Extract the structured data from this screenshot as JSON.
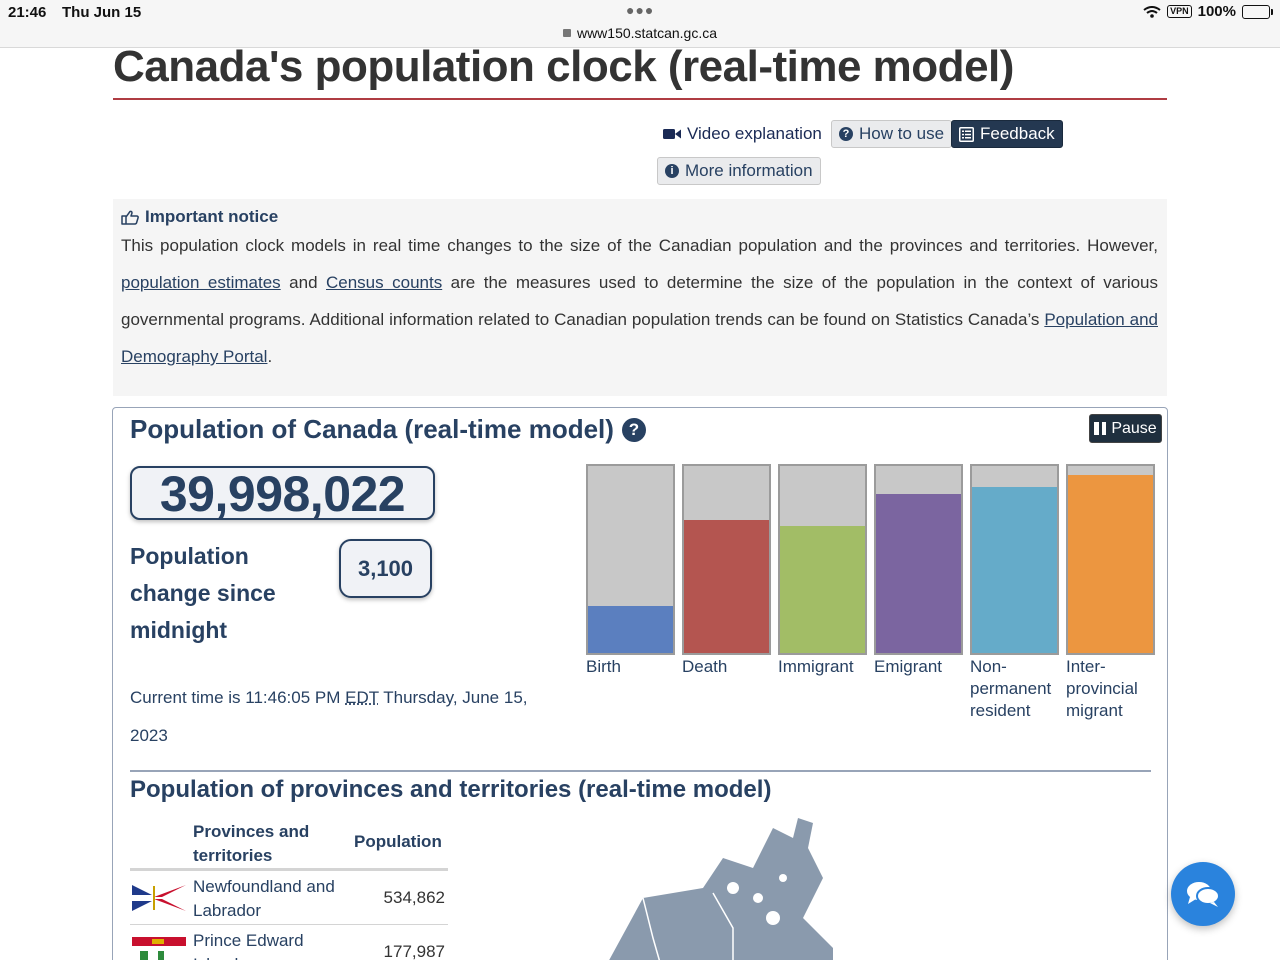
{
  "status_bar": {
    "time": "21:46",
    "date": "Thu Jun 15",
    "url": "www150.statcan.gc.ca",
    "vpn": "VPN",
    "battery": "100%"
  },
  "page": {
    "title": "Canada's population clock (real-time model)"
  },
  "toolbar": {
    "video_label": "Video explanation",
    "how_label": "How to use",
    "feedback_label": "Feedback",
    "more_label": "More information"
  },
  "notice": {
    "heading": "Important notice",
    "text_1": "This population clock models in real time changes to the size of the Canadian population and the provinces and territories. However, ",
    "link_estimates": "population estimates",
    "text_2": " and ",
    "link_census": "Census counts",
    "text_3": " are the measures used to determine the size of the population in the context of various governmental programs. Additional information related to Canadian population trends can be found on Statistics Canada’s ",
    "link_portal": "Population and Demography Portal",
    "text_4": "."
  },
  "clock": {
    "title": "Population of Canada (real-time model)",
    "pause_label": "Pause",
    "population": "39,998,022",
    "change_label": "Population change since midnight",
    "change_value": "3,100",
    "time_prefix": "Current time is 11:46:05 PM ",
    "time_zone": "EDT",
    "time_suffix": " Thursday, June 15, 2023",
    "components": [
      {
        "label": "Birth",
        "level": 0.25,
        "color": "#5b7fbf"
      },
      {
        "label": "Death",
        "level": 0.71,
        "color": "#b45550"
      },
      {
        "label": "Immigrant",
        "level": 0.68,
        "color": "#a2bd66"
      },
      {
        "label": "Emigrant",
        "level": 0.85,
        "color": "#7b65a0"
      },
      {
        "label": "Non-permanent resident",
        "level": 0.89,
        "color": "#65abc9"
      },
      {
        "label": "Inter-provincial migrant",
        "level": 0.95,
        "color": "#ec9640"
      }
    ]
  },
  "provinces": {
    "title": "Population of provinces and territories (real-time model)",
    "col_name": "Provinces and territories",
    "col_pop": "Population",
    "rows": [
      {
        "name": "Newfoundland and Labrador",
        "population": "534,862"
      },
      {
        "name": "Prince Edward Island",
        "population": "177,987"
      }
    ]
  },
  "colors": {
    "primary": "#284162",
    "title_rule": "#af3c43",
    "chat": "#2a83dd"
  }
}
